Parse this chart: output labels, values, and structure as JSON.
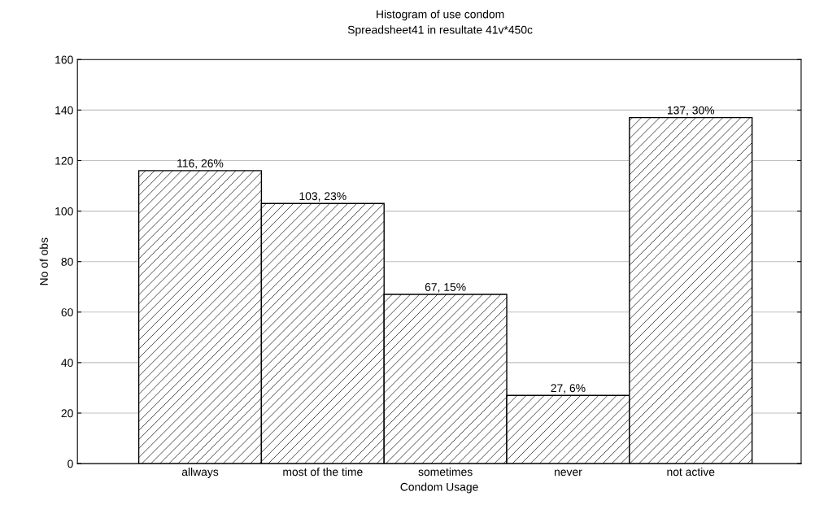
{
  "chart_data": {
    "type": "bar",
    "title": "Histogram of use condom",
    "subtitle": "Spreadsheet41 in resultate 41v*450c",
    "xlabel": "Condom Usage",
    "ylabel": "No of obs",
    "categories": [
      "allways",
      "most of the time",
      "sometimes",
      "never",
      "not active"
    ],
    "values": [
      116,
      103,
      67,
      27,
      137
    ],
    "value_labels": [
      "116, 26%",
      "103, 23%",
      "67, 15%",
      "27, 6%",
      "137, 30%"
    ],
    "color": "#000000",
    "ylim": [
      0,
      160
    ],
    "yticks": [
      0,
      20,
      40,
      60,
      80,
      100,
      120,
      140,
      160
    ],
    "grid": "y",
    "legend": false
  }
}
